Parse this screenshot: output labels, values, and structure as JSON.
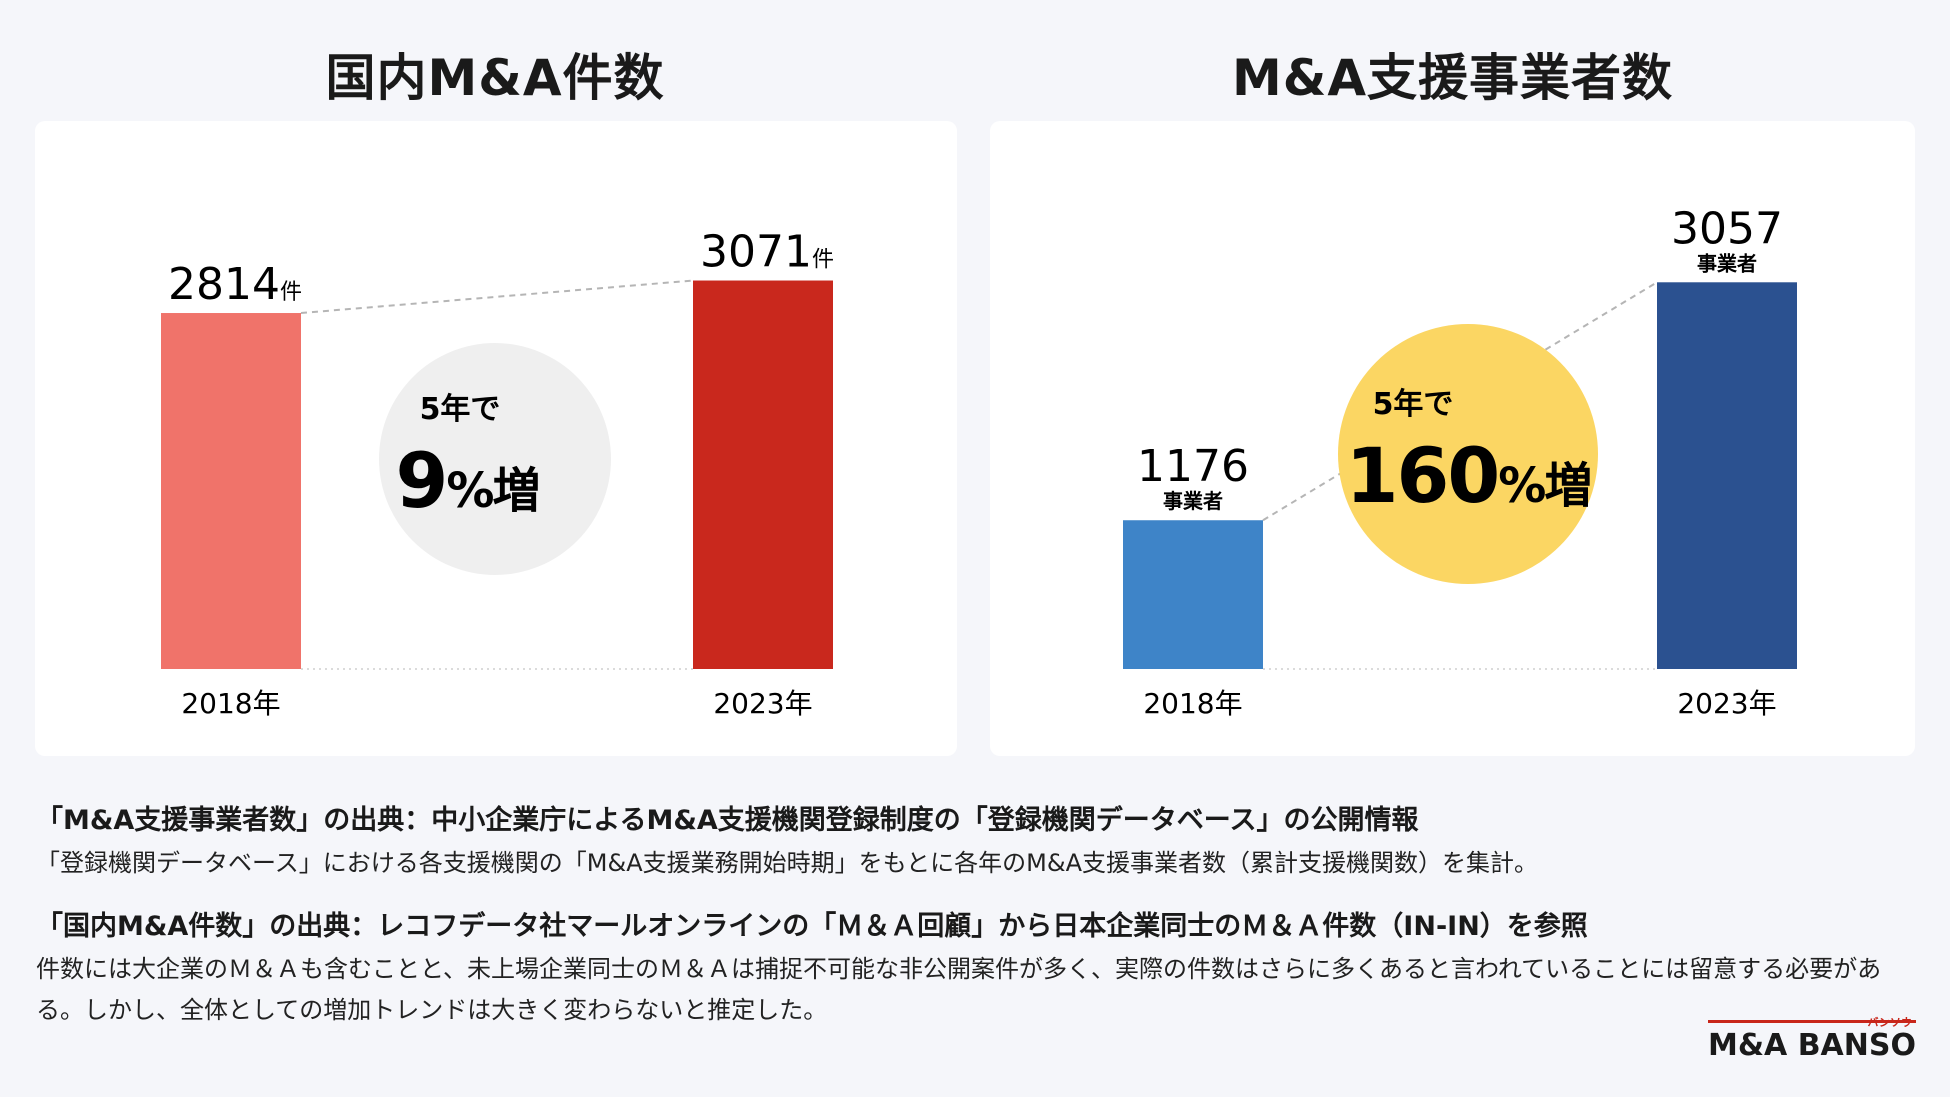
{
  "chart_data": [
    {
      "type": "bar",
      "title": "国内M&A件数",
      "categories": [
        "2018年",
        "2023年"
      ],
      "values": [
        2814,
        3071
      ],
      "unit": "件",
      "unit_position": "inline",
      "colors": [
        "#f0736a",
        "#c9281d"
      ],
      "growth": {
        "prefix": "5年で",
        "value": "9",
        "suffix": "%増"
      },
      "growth_color": "#efefef",
      "ylim": [
        0,
        3500
      ]
    },
    {
      "type": "bar",
      "title": "M&A支援事業者数",
      "categories": [
        "2018年",
        "2023年"
      ],
      "values": [
        1176,
        3057
      ],
      "unit": "事業者",
      "unit_position": "below",
      "colors": [
        "#3e84c8",
        "#2b5190"
      ],
      "growth": {
        "prefix": "5年で",
        "value": "160",
        "suffix": "%増"
      },
      "growth_color": "#fbd663",
      "ylim": [
        0,
        3500
      ]
    }
  ],
  "notes": [
    {
      "heading": "「M&A支援事業者数」の出典：中小企業庁によるM&A支援機関登録制度の「登録機関データベース」の公開情報",
      "body": "「登録機関データベース」における各支援機関の「M&A支援業務開始時期」をもとに各年のM&A支援事業者数（累計支援機関数）を集計。"
    },
    {
      "heading": "「国内M&A件数」の出典：レコフデータ社マールオンラインの「Ｍ＆Ａ回顧」から日本企業同士のＭ＆Ａ件数（IN-IN）を参照",
      "body": "件数には大企業のＭ＆Ａも含むことと、未上場企業同士のＭ＆Ａは捕捉不可能な非公開案件が多く、実際の件数はさらに多くあると言われていることには留意する必要がある。しかし、全体としての増加トレンドは大きく変わらないと推定した。"
    }
  ],
  "logo": {
    "prefix": "M&A",
    "brand": "BANSO",
    "ruby": "バンソウ"
  }
}
